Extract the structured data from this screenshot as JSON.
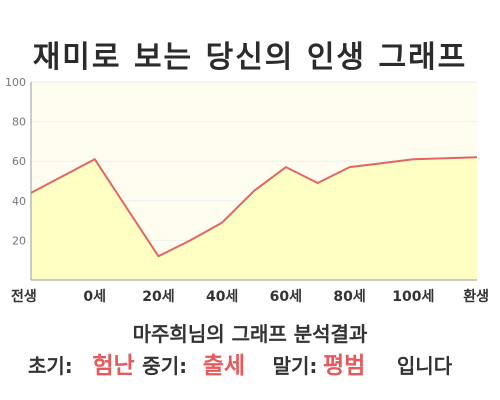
{
  "title": "재미로 보는 당신의 인생 그래프",
  "chart_data": {
    "type": "area",
    "x_tick_labels": [
      "전생",
      "0세",
      "20세",
      "40세",
      "60세",
      "80세",
      "100세",
      "환생"
    ],
    "y_ticks": [
      100,
      80,
      60,
      40,
      20
    ],
    "ylim": [
      0,
      100
    ],
    "grid": true,
    "points": [
      {
        "x": -20,
        "y": 44
      },
      {
        "x": 0,
        "y": 61
      },
      {
        "x": 20,
        "y": 12
      },
      {
        "x": 30,
        "y": 20
      },
      {
        "x": 40,
        "y": 29
      },
      {
        "x": 50,
        "y": 45
      },
      {
        "x": 60,
        "y": 57
      },
      {
        "x": 70,
        "y": 49
      },
      {
        "x": 80,
        "y": 57
      },
      {
        "x": 90,
        "y": 59
      },
      {
        "x": 100,
        "y": 61
      },
      {
        "x": 110,
        "y": 61.5
      },
      {
        "x": 120,
        "y": 62
      }
    ]
  },
  "summary": {
    "title": "마주희님의 그래프 분석결과",
    "early_label": "초기:",
    "early_value": "험난",
    "middle_label": "중기:",
    "middle_value": "출세",
    "late_label": "말기:",
    "late_value": "평범",
    "ending": "입니다"
  },
  "colors": {
    "plot_background": "#fffdf0",
    "area_fill": "#ffffc4",
    "line": "#e06666",
    "result_text": "#e8595b",
    "axis": "#999999",
    "tick_text": "#777777",
    "grid": "#eeeeee"
  }
}
